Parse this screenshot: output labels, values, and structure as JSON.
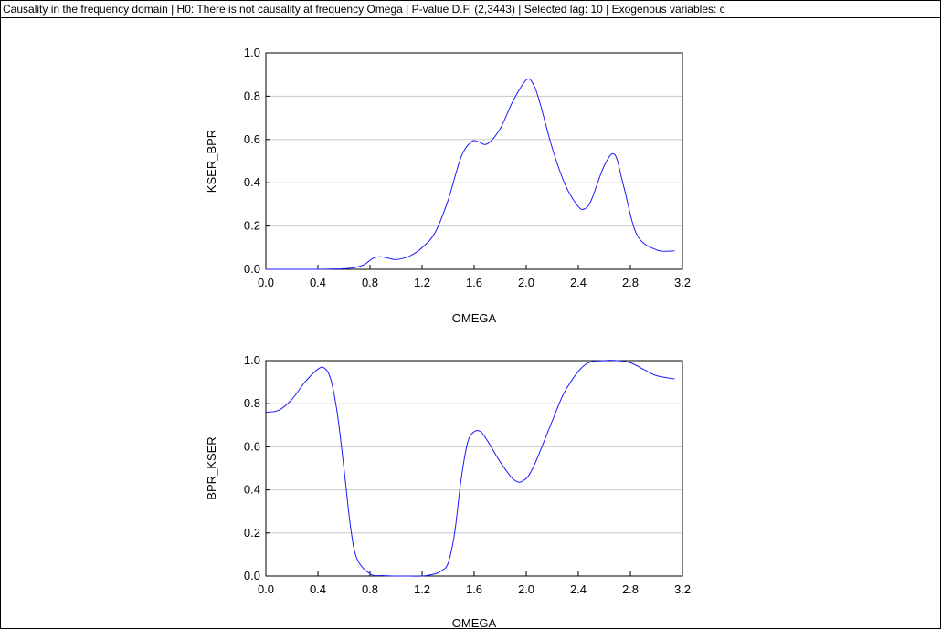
{
  "header": {
    "title": "Causality in the frequency domain | H0: There is not causality at frequency Omega | P-value D.F. (2,3443) | Selected lag: 10 | Exogenous variables: c"
  },
  "colors": {
    "line": "#1a1aff",
    "grid": "#c8c8c8",
    "axis": "#000000"
  },
  "chart_data": [
    {
      "type": "line",
      "xlabel": "OMEGA",
      "ylabel": "KSER_BPR",
      "xlim": [
        0.0,
        3.2
      ],
      "ylim": [
        0.0,
        1.0
      ],
      "xticks": [
        "0.0",
        "0.4",
        "0.8",
        "1.2",
        "1.6",
        "2.0",
        "2.4",
        "2.8",
        "3.2"
      ],
      "yticks": [
        "0.0",
        "0.2",
        "0.4",
        "0.6",
        "0.8",
        "1.0"
      ],
      "grid": true,
      "series": [
        {
          "x": [
            0.0,
            0.3,
            0.5,
            0.65,
            0.75,
            0.82,
            0.88,
            0.95,
            1.0,
            1.1,
            1.2,
            1.3,
            1.4,
            1.5,
            1.58,
            1.63,
            1.7,
            1.8,
            1.9,
            2.0,
            2.05,
            2.1,
            2.2,
            2.3,
            2.4,
            2.45,
            2.5,
            2.6,
            2.68,
            2.75,
            2.85,
            3.0,
            3.14
          ],
          "y": [
            0.0,
            0.0,
            0.001,
            0.005,
            0.02,
            0.05,
            0.058,
            0.05,
            0.045,
            0.06,
            0.1,
            0.17,
            0.32,
            0.52,
            0.59,
            0.59,
            0.58,
            0.65,
            0.78,
            0.875,
            0.86,
            0.78,
            0.56,
            0.39,
            0.29,
            0.28,
            0.32,
            0.48,
            0.53,
            0.38,
            0.16,
            0.09,
            0.085
          ]
        }
      ]
    },
    {
      "type": "line",
      "xlabel": "OMEGA",
      "ylabel": "BPR_KSER",
      "xlim": [
        0.0,
        3.2
      ],
      "ylim": [
        0.0,
        1.0
      ],
      "xticks": [
        "0.0",
        "0.4",
        "0.8",
        "1.2",
        "1.6",
        "2.0",
        "2.4",
        "2.8",
        "3.2"
      ],
      "yticks": [
        "0.0",
        "0.2",
        "0.4",
        "0.6",
        "0.8",
        "1.0"
      ],
      "grid": true,
      "series": [
        {
          "x": [
            0.0,
            0.1,
            0.2,
            0.3,
            0.4,
            0.45,
            0.5,
            0.55,
            0.6,
            0.65,
            0.7,
            0.8,
            0.9,
            1.0,
            1.1,
            1.2,
            1.3,
            1.35,
            1.4,
            1.45,
            1.5,
            1.55,
            1.6,
            1.65,
            1.7,
            1.8,
            1.9,
            1.97,
            2.05,
            2.2,
            2.3,
            2.45,
            2.6,
            2.7,
            2.8,
            2.9,
            3.0,
            3.14
          ],
          "y": [
            0.76,
            0.77,
            0.82,
            0.9,
            0.96,
            0.965,
            0.91,
            0.75,
            0.5,
            0.23,
            0.08,
            0.01,
            0.002,
            0.0,
            0.0,
            0.0,
            0.01,
            0.025,
            0.06,
            0.2,
            0.45,
            0.62,
            0.67,
            0.67,
            0.63,
            0.53,
            0.45,
            0.44,
            0.5,
            0.72,
            0.86,
            0.98,
            1.0,
            1.0,
            0.99,
            0.96,
            0.93,
            0.915
          ]
        }
      ]
    }
  ]
}
